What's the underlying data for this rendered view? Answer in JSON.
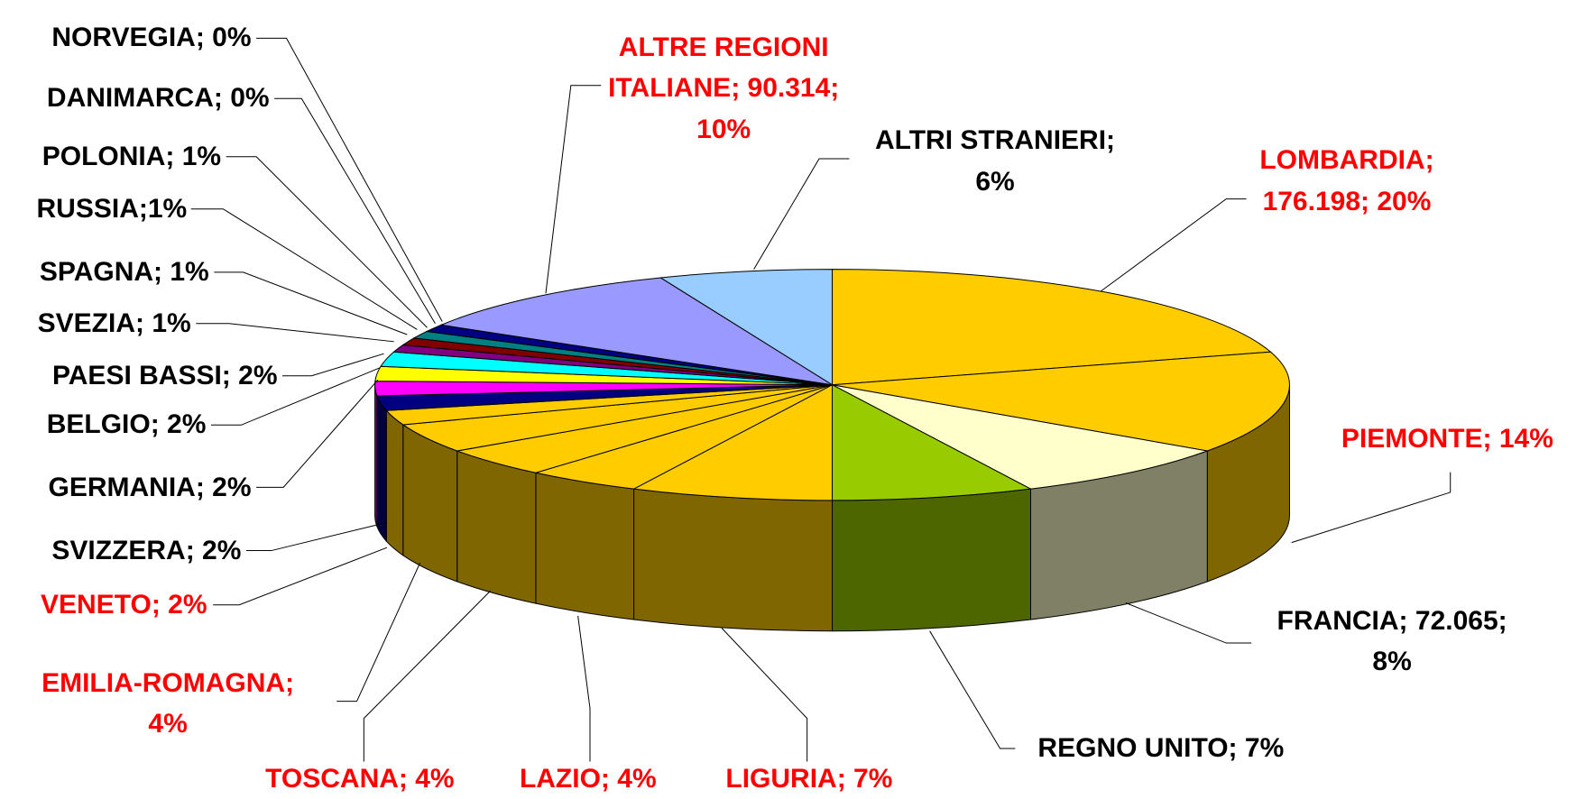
{
  "chart_data": {
    "type": "pie",
    "categories": [
      "LOMBARDIA;",
      "PIEMONTE;",
      "FRANCIA;",
      "REGNO UNITO;",
      "LIGURIA;",
      "LAZIO;",
      "TOSCANA;",
      "EMILIA-ROMAGNA;",
      "VENETO;",
      "SVIZZERA;",
      "GERMANIA;",
      "BELGIO;",
      "PAESI BASSI;",
      "SVEZIA;",
      "SPAGNA;",
      "RUSSIA;",
      "POLONIA;",
      "DANIMARCA;",
      "NORVEGIA;",
      "ALTRE REGIONI ITALIANE;",
      "ALTRI STRANIERI;"
    ],
    "values": [
      20,
      14,
      8,
      7,
      7,
      4,
      4,
      4,
      2,
      2,
      2,
      2,
      2,
      1,
      1,
      1,
      1,
      0,
      0,
      10,
      6
    ],
    "value_labels": [
      "176.198; 20%",
      "14%",
      "72.065; 8%",
      "7%",
      "7%",
      "4%",
      "4%",
      "4%",
      "2%",
      "2%",
      "2%",
      "2%",
      "2%",
      "1%",
      "1%",
      "1%",
      "1%",
      "0%",
      "0%",
      "90.314; 10%",
      "6%"
    ],
    "colors": [
      "#FFCC00",
      "#FFCC00",
      "#FFFFCC",
      "#99CC00",
      "#FFCC00",
      "#FFCC00",
      "#FFCC00",
      "#FFCC00",
      "#FFCC00",
      "#000080",
      "#FF00FF",
      "#FFFF00",
      "#00FFFF",
      "#800080",
      "#800000",
      "#008080",
      "#000080",
      "#FFFFFF",
      "#CCCCFF",
      "#9999FF",
      "#99CCFF"
    ],
    "label_colors": [
      "#FF0000",
      "#FF0000",
      "#000000",
      "#000000",
      "#FF0000",
      "#FF0000",
      "#FF0000",
      "#FF0000",
      "#FF0000",
      "#000000",
      "#000000",
      "#000000",
      "#000000",
      "#000000",
      "#000000",
      "#000000",
      "#000000",
      "#000000",
      "#000000",
      "#FF0000",
      "#000000"
    ]
  }
}
